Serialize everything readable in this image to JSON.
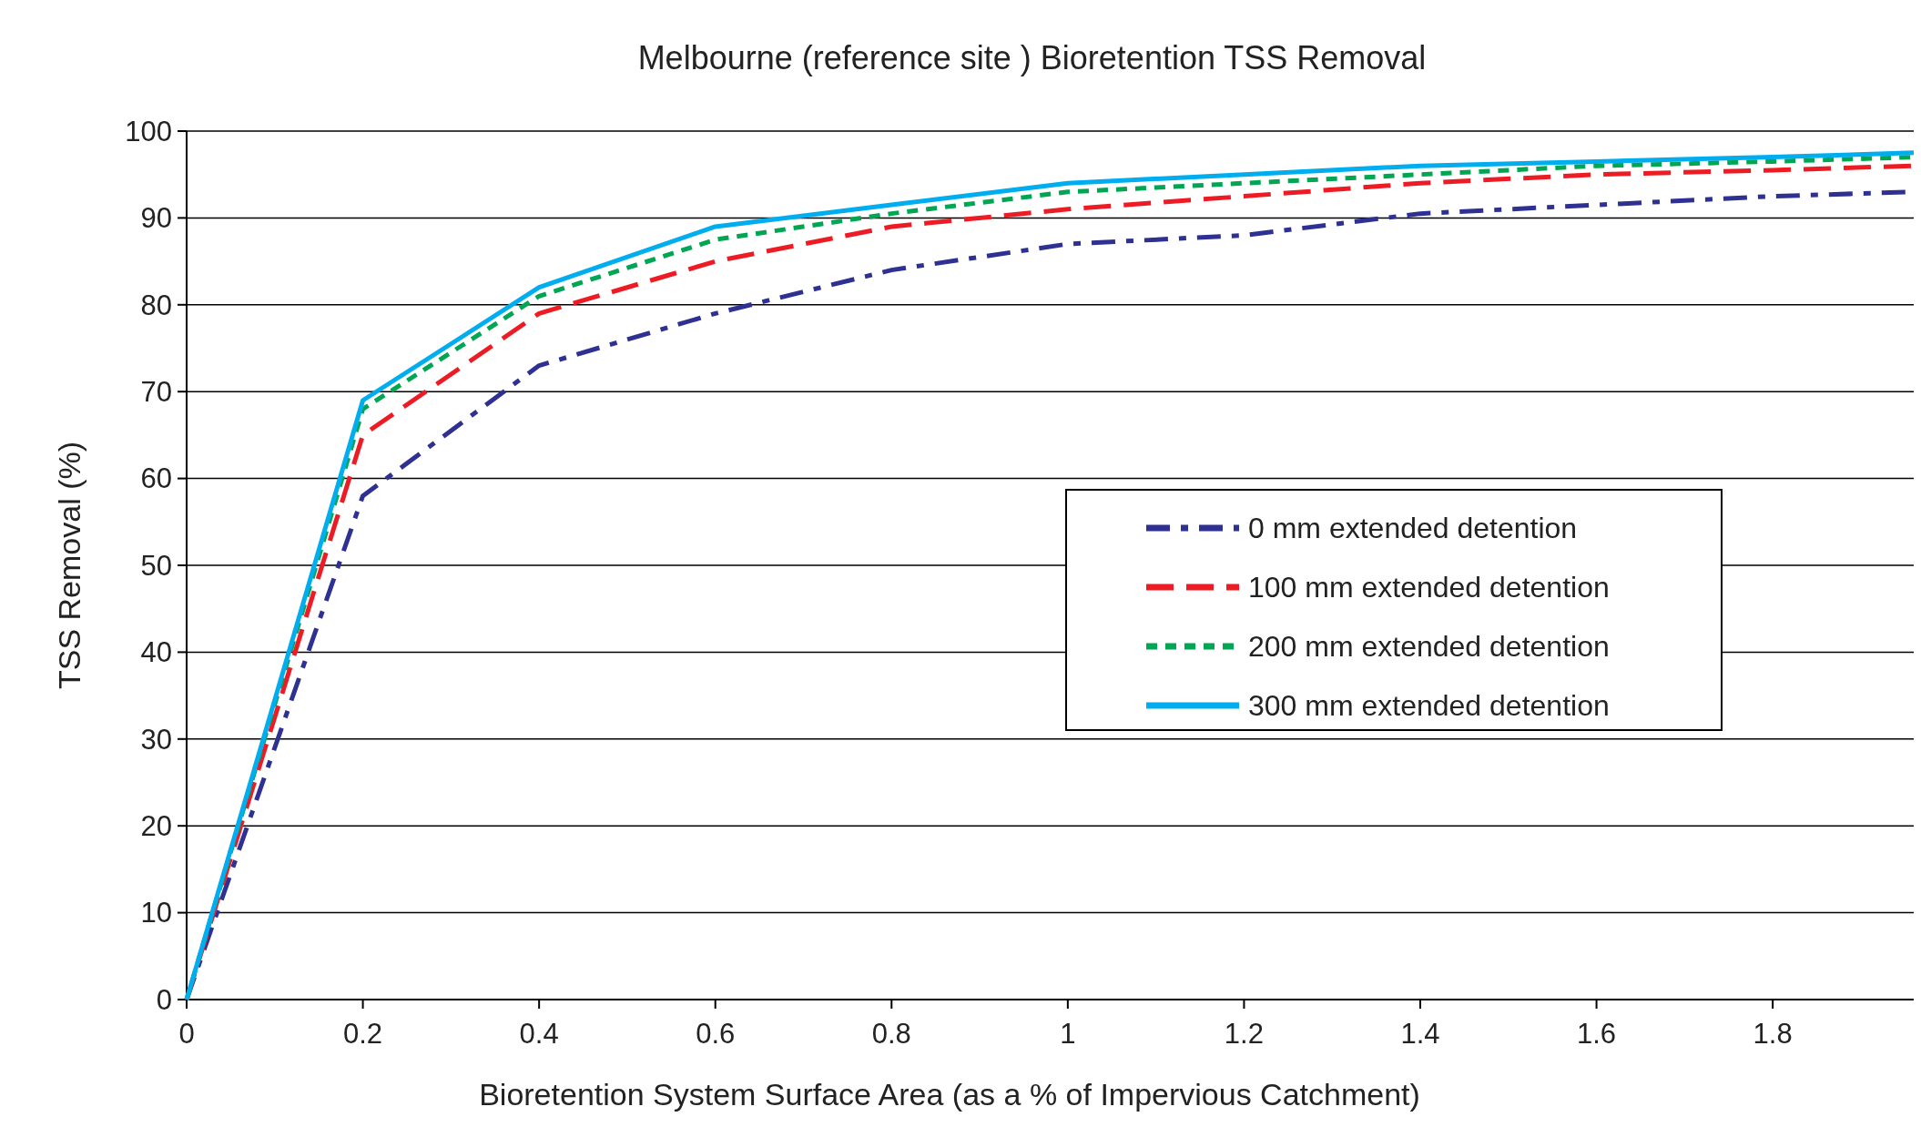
{
  "chart_data": {
    "type": "line",
    "title": "Melbourne (reference site ) Bioretention TSS Removal",
    "xlabel": "Bioretention System Surface Area (as a % of Impervious Catchment)",
    "ylabel": "TSS Removal (%)",
    "x": [
      0,
      0.2,
      0.4,
      0.6,
      0.8,
      1,
      1.2,
      1.4,
      1.6,
      1.8,
      1.96
    ],
    "series": [
      {
        "name": "0 mm extended detention",
        "color": "#2e3192",
        "line_style": "dashdot",
        "values": [
          0,
          58,
          73,
          79,
          84,
          87,
          88,
          90.5,
          91.5,
          92.5,
          93
        ]
      },
      {
        "name": "100 mm extended detention",
        "color": "#ed1c24",
        "line_style": "longdash",
        "values": [
          0,
          65,
          79,
          85,
          89,
          91,
          92.5,
          94,
          95,
          95.5,
          96
        ]
      },
      {
        "name": "200 mm extended detention",
        "color": "#00a651",
        "line_style": "dashed",
        "values": [
          0,
          68,
          81,
          87.5,
          90.5,
          93,
          94,
          95,
          96,
          96.5,
          97
        ]
      },
      {
        "name": "300 mm extended detention",
        "color": "#00aeef",
        "line_style": "solid",
        "values": [
          0,
          69,
          82,
          89,
          91.5,
          94,
          95,
          96,
          96.5,
          97,
          97.5
        ]
      }
    ],
    "xlim": [
      0,
      1.96
    ],
    "xticks": [
      0,
      0.2,
      0.4,
      0.6,
      0.8,
      1,
      1.2,
      1.4,
      1.6,
      1.8
    ],
    "ylim": [
      0,
      100
    ],
    "yticks": [
      0,
      10,
      20,
      30,
      40,
      50,
      60,
      70,
      80,
      90,
      100
    ],
    "grid": "y",
    "legend": "right",
    "marker": "none"
  }
}
